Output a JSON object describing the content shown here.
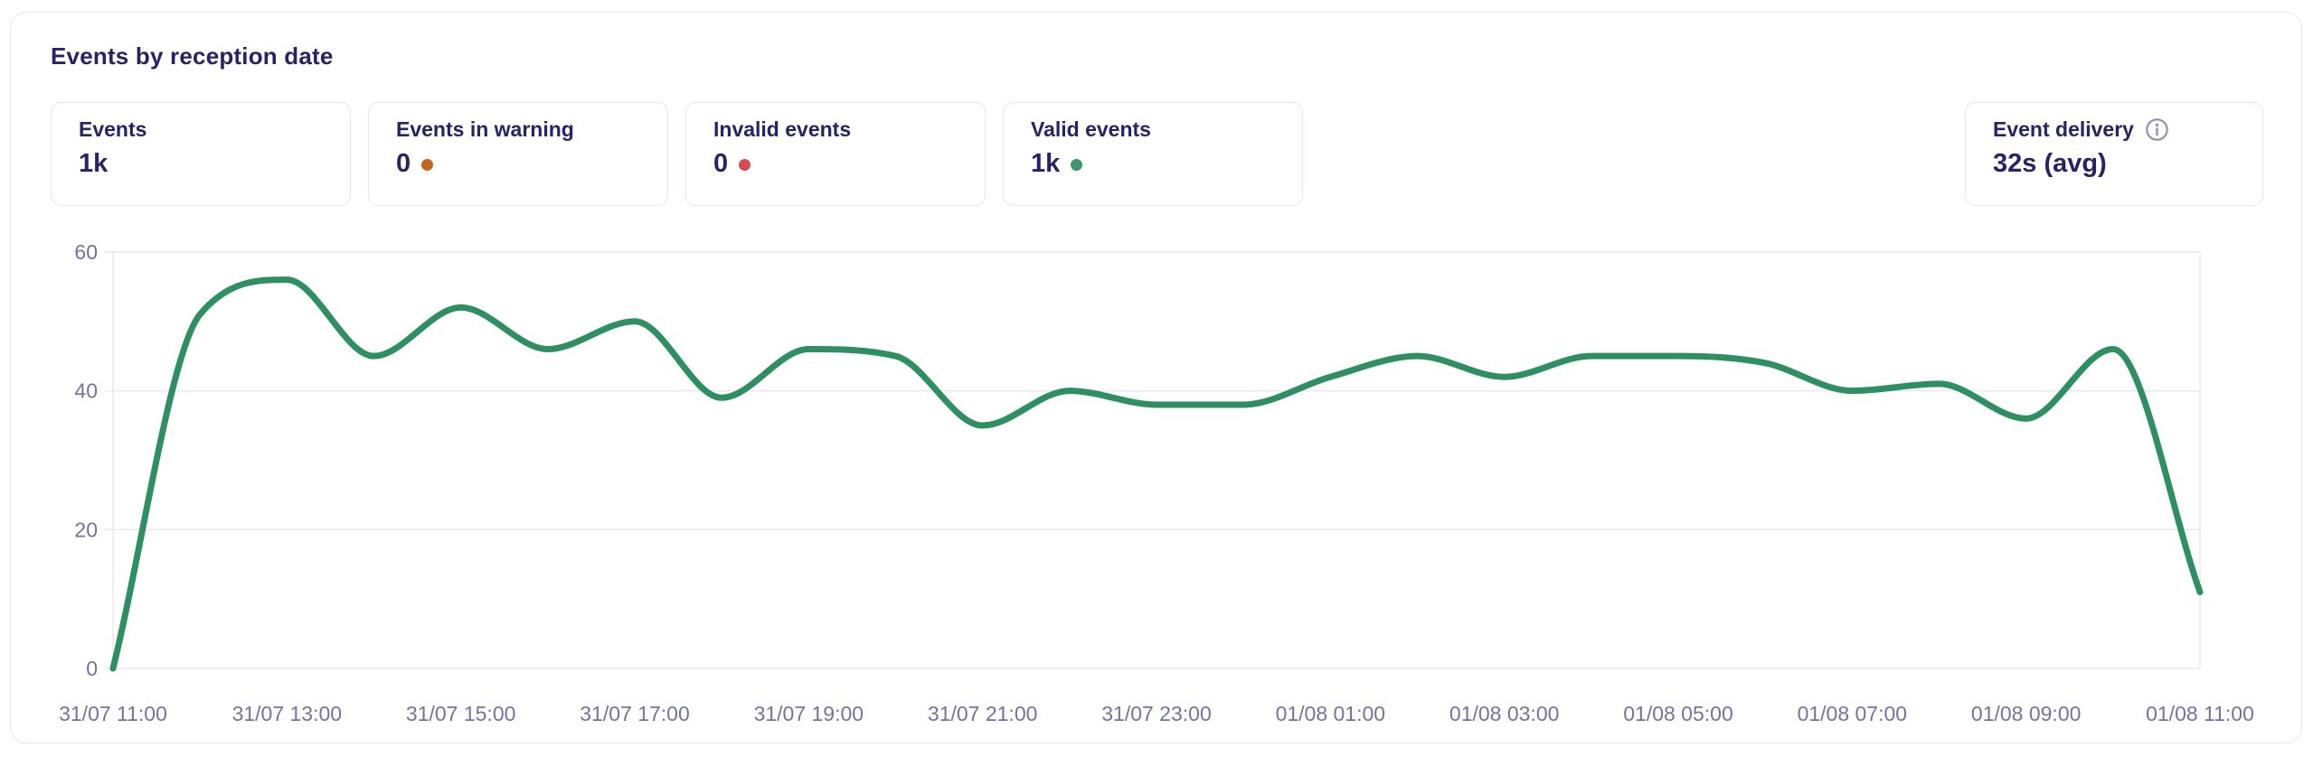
{
  "panel": {
    "title": "Events by reception date"
  },
  "stats": [
    {
      "label": "Events",
      "value": "1k",
      "dot_color": null
    },
    {
      "label": "Events in warning",
      "value": "0",
      "dot_color": "#c2661d"
    },
    {
      "label": "Invalid events",
      "value": "0",
      "dot_color": "#d84a52"
    },
    {
      "label": "Valid events",
      "value": "1k",
      "dot_color": "#3b9671"
    }
  ],
  "delivery": {
    "label": "Event delivery",
    "value": "32s (avg)",
    "info_icon": "circle-info-icon"
  },
  "colors": {
    "heading_navy": "#272366",
    "axis_label": "#7373a1",
    "grid_line": "#e8e8f3",
    "series_green": "#2e8f62",
    "panel_border": "#e7e6f3",
    "info_icon_gray": "#8f8fbc"
  },
  "chart_data": {
    "type": "line",
    "title": "Events by reception date",
    "smooth": true,
    "grid": true,
    "legend": null,
    "xlabel": "",
    "ylabel": "",
    "ylim": [
      0,
      60
    ],
    "yticks": [
      0,
      20,
      40,
      60
    ],
    "x": [
      "31/07 11:00",
      "31/07 12:00",
      "31/07 13:00",
      "31/07 14:00",
      "31/07 15:00",
      "31/07 16:00",
      "31/07 17:00",
      "31/07 18:00",
      "31/07 19:00",
      "31/07 20:00",
      "31/07 21:00",
      "31/07 22:00",
      "31/07 23:00",
      "01/08 00:00",
      "01/08 01:00",
      "01/08 02:00",
      "01/08 03:00",
      "01/08 04:00",
      "01/08 05:00",
      "01/08 06:00",
      "01/08 07:00",
      "01/08 08:00",
      "01/08 09:00",
      "01/08 10:00",
      "01/08 11:00"
    ],
    "x_tick_labels": [
      "31/07 11:00",
      "31/07 13:00",
      "31/07 15:00",
      "31/07 17:00",
      "31/07 19:00",
      "31/07 21:00",
      "31/07 23:00",
      "01/08 01:00",
      "01/08 03:00",
      "01/08 05:00",
      "01/08 07:00",
      "01/08 09:00",
      "01/08 11:00"
    ],
    "series": [
      {
        "name": "Events",
        "color": "#2e8f62",
        "values": [
          0,
          51,
          56,
          45,
          52,
          46,
          50,
          39,
          46,
          45,
          35,
          40,
          38,
          38,
          42,
          45,
          42,
          45,
          45,
          44,
          40,
          41,
          36,
          46,
          11
        ]
      }
    ]
  }
}
